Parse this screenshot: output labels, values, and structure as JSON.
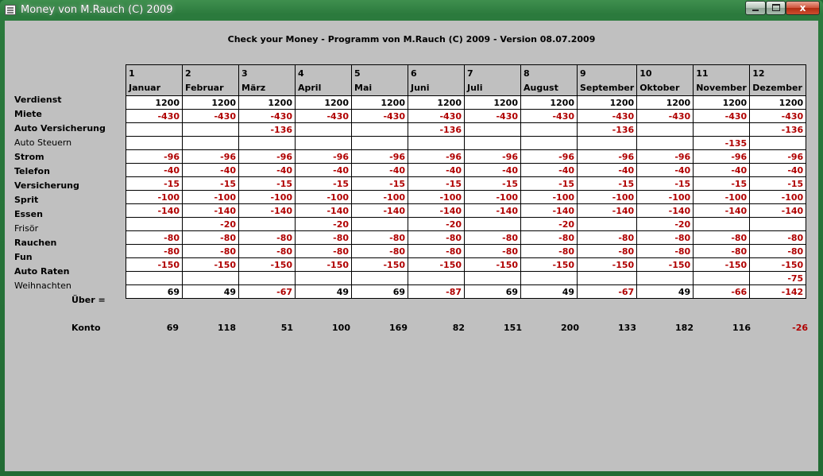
{
  "window": {
    "title": "Money von M.Rauch (C) 2009",
    "close_glyph": "x"
  },
  "heading": "Check your Money - Programm von M.Rauch (C) 2009 - Version 08.07.2009",
  "months": [
    {
      "num": "1",
      "name": "Januar"
    },
    {
      "num": "2",
      "name": "Februar"
    },
    {
      "num": "3",
      "name": "März"
    },
    {
      "num": "4",
      "name": "April"
    },
    {
      "num": "5",
      "name": "Mai"
    },
    {
      "num": "6",
      "name": "Juni"
    },
    {
      "num": "7",
      "name": "Juli"
    },
    {
      "num": "8",
      "name": "August"
    },
    {
      "num": "9",
      "name": "September"
    },
    {
      "num": "10",
      "name": "Oktober"
    },
    {
      "num": "11",
      "name": "November"
    },
    {
      "num": "12",
      "name": "Dezember"
    }
  ],
  "rows": [
    {
      "label": "Verdienst",
      "bold": true,
      "values": [
        "1200",
        "1200",
        "1200",
        "1200",
        "1200",
        "1200",
        "1200",
        "1200",
        "1200",
        "1200",
        "1200",
        "1200"
      ]
    },
    {
      "label": "Miete",
      "bold": true,
      "values": [
        "-430",
        "-430",
        "-430",
        "-430",
        "-430",
        "-430",
        "-430",
        "-430",
        "-430",
        "-430",
        "-430",
        "-430"
      ]
    },
    {
      "label": "Auto Versicherung",
      "bold": true,
      "values": [
        "",
        "",
        "-136",
        "",
        "",
        "-136",
        "",
        "",
        "-136",
        "",
        "",
        "-136"
      ]
    },
    {
      "label": "Auto Steuern",
      "bold": false,
      "values": [
        "",
        "",
        "",
        "",
        "",
        "",
        "",
        "",
        "",
        "",
        "-135",
        ""
      ]
    },
    {
      "label": "Strom",
      "bold": true,
      "values": [
        "-96",
        "-96",
        "-96",
        "-96",
        "-96",
        "-96",
        "-96",
        "-96",
        "-96",
        "-96",
        "-96",
        "-96"
      ]
    },
    {
      "label": "Telefon",
      "bold": true,
      "values": [
        "-40",
        "-40",
        "-40",
        "-40",
        "-40",
        "-40",
        "-40",
        "-40",
        "-40",
        "-40",
        "-40",
        "-40"
      ]
    },
    {
      "label": "Versicherung",
      "bold": true,
      "values": [
        "-15",
        "-15",
        "-15",
        "-15",
        "-15",
        "-15",
        "-15",
        "-15",
        "-15",
        "-15",
        "-15",
        "-15"
      ]
    },
    {
      "label": "Sprit",
      "bold": true,
      "values": [
        "-100",
        "-100",
        "-100",
        "-100",
        "-100",
        "-100",
        "-100",
        "-100",
        "-100",
        "-100",
        "-100",
        "-100"
      ]
    },
    {
      "label": "Essen",
      "bold": true,
      "values": [
        "-140",
        "-140",
        "-140",
        "-140",
        "-140",
        "-140",
        "-140",
        "-140",
        "-140",
        "-140",
        "-140",
        "-140"
      ]
    },
    {
      "label": "Frisör",
      "bold": false,
      "values": [
        "",
        "-20",
        "",
        "-20",
        "",
        "-20",
        "",
        "-20",
        "",
        "-20",
        "",
        ""
      ]
    },
    {
      "label": "Rauchen",
      "bold": true,
      "values": [
        "-80",
        "-80",
        "-80",
        "-80",
        "-80",
        "-80",
        "-80",
        "-80",
        "-80",
        "-80",
        "-80",
        "-80"
      ]
    },
    {
      "label": "Fun",
      "bold": true,
      "values": [
        "-80",
        "-80",
        "-80",
        "-80",
        "-80",
        "-80",
        "-80",
        "-80",
        "-80",
        "-80",
        "-80",
        "-80"
      ]
    },
    {
      "label": "Auto Raten",
      "bold": true,
      "values": [
        "-150",
        "-150",
        "-150",
        "-150",
        "-150",
        "-150",
        "-150",
        "-150",
        "-150",
        "-150",
        "-150",
        "-150"
      ]
    },
    {
      "label": "Weihnachten",
      "bold": false,
      "values": [
        "",
        "",
        "",
        "",
        "",
        "",
        "",
        "",
        "",
        "",
        "",
        "-75"
      ]
    }
  ],
  "ueber": {
    "label": "Über =",
    "values": [
      "69",
      "49",
      "-67",
      "49",
      "69",
      "-87",
      "69",
      "49",
      "-67",
      "49",
      "-66",
      "-142"
    ]
  },
  "konto": {
    "label": "Konto",
    "values": [
      "69",
      "118",
      "51",
      "100",
      "169",
      "82",
      "151",
      "200",
      "133",
      "182",
      "116",
      "-26"
    ]
  },
  "colors": {
    "negative": "#b00000",
    "positive": "#000000",
    "client_bg": "#c0c0c0"
  }
}
